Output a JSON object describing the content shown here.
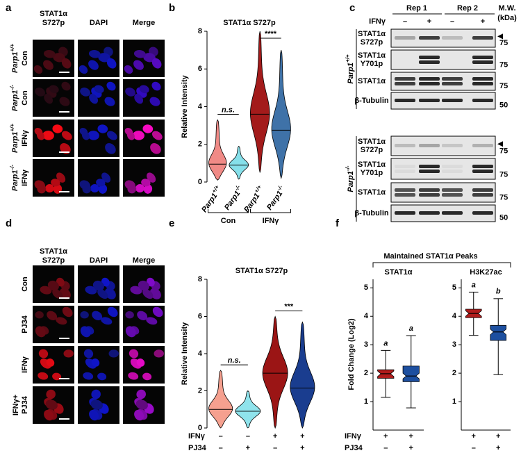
{
  "panel_labels": [
    "a",
    "b",
    "c",
    "d",
    "e",
    "f"
  ],
  "panel_a": {
    "columns": [
      [
        "STAT1α",
        "S727p"
      ],
      [
        "DAPI"
      ],
      [
        "Merge"
      ]
    ],
    "rows": [
      {
        "genotype": "Parp1",
        "sup": "+/+",
        "treatment": "Con"
      },
      {
        "genotype": "Parp1",
        "sup": "-/-",
        "treatment": "Con"
      },
      {
        "genotype": "Parp1",
        "sup": "+/+",
        "treatment": "IFNγ"
      },
      {
        "genotype": "Parp1",
        "sup": "-/-",
        "treatment": "IFNγ"
      }
    ]
  },
  "panel_c": {
    "reps": [
      "Rep 1",
      "Rep 2"
    ],
    "treatment": "IFNγ",
    "signs": [
      "–",
      "+",
      "–",
      "+"
    ],
    "mw_header": [
      "M.W.",
      "(kDa)"
    ],
    "groups": [
      {
        "genotype": "Parp1",
        "sup": "+/+",
        "blots": [
          {
            "label": [
              "STAT1α",
              "S727p"
            ],
            "mw": 75,
            "arrow": true
          },
          {
            "label": [
              "STAT1α",
              "Y701p"
            ],
            "mw": 75,
            "arrow": false
          },
          {
            "label": [
              "STAT1α"
            ],
            "mw": 75,
            "arrow": false
          },
          {
            "label": [
              "β-Tubulin"
            ],
            "mw": 50,
            "arrow": false
          }
        ]
      },
      {
        "genotype": "Parp1",
        "sup": "-/-",
        "blots": [
          {
            "label": [
              "STAT1α",
              "S727p"
            ],
            "mw": 75,
            "arrow": true
          },
          {
            "label": [
              "STAT1α",
              "Y701p"
            ],
            "mw": 75,
            "arrow": false
          },
          {
            "label": [
              "STAT1α"
            ],
            "mw": 75,
            "arrow": false
          },
          {
            "label": [
              "β-Tubulin"
            ],
            "mw": 50,
            "arrow": false
          }
        ]
      }
    ]
  },
  "panel_d": {
    "columns": [
      [
        "STAT1α",
        "S727p"
      ],
      [
        "DAPI"
      ],
      [
        "Merge"
      ]
    ],
    "rows": [
      [
        "Con"
      ],
      [
        "PJ34"
      ],
      [
        "IFNγ"
      ],
      [
        "IFNγ+",
        "PJ34"
      ]
    ]
  },
  "panel_f": {
    "title": "Maintained STAT1α Peaks",
    "ylabel": "Fold Change (Log2)",
    "condition_names": [
      "IFNγ",
      "PJ34"
    ]
  },
  "chart_data": [
    {
      "type": "violin",
      "title": "STAT1α S727p",
      "ylabel": "Relative Intensity",
      "ylim": [
        0,
        8
      ],
      "yticks": [
        0,
        2,
        4,
        6,
        8
      ],
      "categories": [
        "Parp1",
        "Parp1",
        "Parp1",
        "Parp1"
      ],
      "category_sups": [
        "+/+",
        "-/-",
        "+/+",
        "-/-"
      ],
      "groups": [
        "Con",
        "IFNγ"
      ],
      "colors": [
        "#f08a86",
        "#86e0ea",
        "#a31b1b",
        "#3f72a8"
      ],
      "values": [
        0.95,
        0.9,
        3.6,
        2.75
      ],
      "min": [
        0.1,
        0.15,
        0.5,
        0.2
      ],
      "max": [
        3.3,
        1.9,
        8,
        7
      ],
      "annotations": [
        "n.s.",
        "****"
      ]
    },
    {
      "type": "violin",
      "title": "STAT1α S727p",
      "ylabel": "Relative Intensity",
      "ylim": [
        0,
        8
      ],
      "yticks": [
        0,
        2,
        4,
        6,
        8
      ],
      "colors": [
        "#f5a08f",
        "#8fe3ec",
        "#9b1515",
        "#1a3d8f"
      ],
      "values": [
        1.0,
        0.9,
        2.95,
        2.15
      ],
      "min": [
        0,
        0,
        0,
        0
      ],
      "max": [
        3.1,
        2.0,
        6.0,
        5.7
      ],
      "annotations": [
        "n.s.",
        "***"
      ],
      "conditions": [
        {
          "name": "IFNγ",
          "signs": [
            "–",
            "–",
            "+",
            "+"
          ]
        },
        {
          "name": "PJ34",
          "signs": [
            "–",
            "+",
            "–",
            "+"
          ]
        }
      ]
    },
    {
      "type": "box",
      "title": "STAT1α",
      "ylim": [
        0,
        5.3
      ],
      "yticks": [
        1,
        2,
        3,
        4,
        5
      ],
      "colors": [
        "#b01c1c",
        "#1d4f9f"
      ],
      "low": [
        1.15,
        0.78
      ],
      "q1": [
        1.82,
        1.7
      ],
      "values": [
        1.98,
        1.9
      ],
      "q3": [
        2.12,
        2.25
      ],
      "high": [
        2.8,
        3.32
      ],
      "letters": [
        "a",
        "a"
      ],
      "condition_signs": [
        [
          "+",
          "+"
        ],
        [
          "–",
          "+"
        ]
      ]
    },
    {
      "type": "box",
      "title": "H3K27ac",
      "ylim": [
        0,
        5.3
      ],
      "yticks": [
        1,
        2,
        3,
        4,
        5
      ],
      "colors": [
        "#b01c1c",
        "#1d4f9f"
      ],
      "low": [
        3.33,
        1.95
      ],
      "q1": [
        3.95,
        3.15
      ],
      "values": [
        4.1,
        3.45
      ],
      "q3": [
        4.25,
        3.68
      ],
      "high": [
        4.85,
        4.62
      ],
      "letters": [
        "a",
        "b"
      ],
      "condition_signs": [
        [
          "+",
          "+"
        ],
        [
          "–",
          "+"
        ]
      ]
    }
  ]
}
